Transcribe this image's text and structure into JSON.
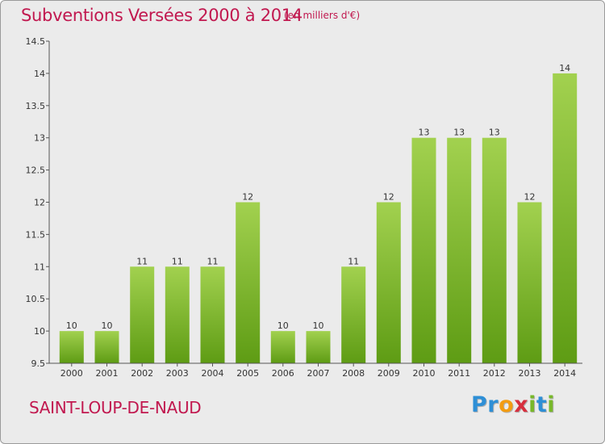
{
  "header": {
    "title": "Subventions Versées 2000 à 2014",
    "units": "(en milliers d'€)"
  },
  "footer": {
    "commune": "SAINT-LOUP-DE-NAUD",
    "logo_letters": [
      {
        "ch": "P",
        "color": "#2e8fd6"
      },
      {
        "ch": "r",
        "color": "#2e8fd6"
      },
      {
        "ch": "o",
        "color": "#f39c12"
      },
      {
        "ch": "x",
        "color": "#d72f3e"
      },
      {
        "ch": "i",
        "color": "#78b82a"
      },
      {
        "ch": "t",
        "color": "#2e8fd6"
      },
      {
        "ch": "i",
        "color": "#78b82a"
      }
    ]
  },
  "colors": {
    "bar_top": "#a2d14f",
    "bar_bottom": "#5e9c14",
    "accent": "#c1184f"
  },
  "chart_data": {
    "type": "bar",
    "title": "Subventions Versées 2000 à 2014",
    "subtitle": "(en milliers d'€)",
    "xlabel": "",
    "ylabel": "",
    "categories": [
      "2000",
      "2001",
      "2002",
      "2003",
      "2004",
      "2005",
      "2006",
      "2007",
      "2008",
      "2009",
      "2010",
      "2011",
      "2012",
      "2013",
      "2014"
    ],
    "values": [
      10,
      10,
      11,
      11,
      11,
      12,
      10,
      10,
      11,
      12,
      13,
      13,
      13,
      12,
      14
    ],
    "data_labels": [
      "10",
      "10",
      "11",
      "11",
      "11",
      "12",
      "10",
      "10",
      "11",
      "12",
      "13",
      "13",
      "13",
      "12",
      "14"
    ],
    "ylim": [
      9.5,
      14.5
    ],
    "yticks": [
      9.5,
      10,
      10.5,
      11,
      11.5,
      12,
      12.5,
      13,
      13.5,
      14,
      14.5
    ],
    "ytick_labels": [
      "9.5",
      "10",
      "10.5",
      "11",
      "11.5",
      "12",
      "12.5",
      "13",
      "13.5",
      "14",
      "14.5"
    ],
    "grid": false,
    "legend": "none"
  }
}
